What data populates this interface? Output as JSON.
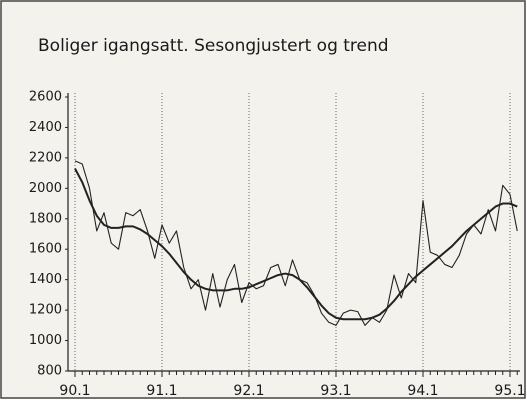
{
  "chart_data": {
    "type": "line",
    "title": "Boliger igangsatt. Sesongjustert og trend",
    "categories": [
      "90.1",
      null,
      null,
      null,
      null,
      null,
      null,
      null,
      null,
      null,
      null,
      null,
      "91.1",
      null,
      null,
      null,
      null,
      null,
      null,
      null,
      null,
      null,
      null,
      null,
      "92.1",
      null,
      null,
      null,
      null,
      null,
      null,
      null,
      null,
      null,
      null,
      null,
      "93.1",
      null,
      null,
      null,
      null,
      null,
      null,
      null,
      null,
      null,
      null,
      null,
      "94.1",
      null,
      null,
      null,
      null,
      null,
      null,
      null,
      null,
      null,
      null,
      null,
      "95.1",
      null
    ],
    "series": [
      {
        "color": "#222222",
        "values": [
          2180,
          2160,
          2000,
          1720,
          1840,
          1640,
          1600,
          1840,
          1820,
          1860,
          1720,
          1540,
          1760,
          1640,
          1720,
          1480,
          1340,
          1400,
          1200,
          1440,
          1220,
          1400,
          1500,
          1250,
          1380,
          1340,
          1360,
          1480,
          1500,
          1360,
          1530,
          1400,
          1380,
          1300,
          1180,
          1120,
          1100,
          1180,
          1200,
          1190,
          1100,
          1150,
          1120,
          1200,
          1430,
          1280,
          1440,
          1380,
          1920,
          1580,
          1560,
          1500,
          1480,
          1560,
          1700,
          1760,
          1700,
          1860,
          1720,
          2020,
          1960,
          1720
        ]
      },
      {
        "color": "#222222",
        "values": [
          2130,
          2040,
          1920,
          1820,
          1760,
          1740,
          1740,
          1750,
          1750,
          1730,
          1700,
          1660,
          1620,
          1570,
          1510,
          1450,
          1400,
          1360,
          1340,
          1330,
          1330,
          1330,
          1340,
          1340,
          1350,
          1370,
          1390,
          1410,
          1430,
          1440,
          1430,
          1400,
          1350,
          1290,
          1230,
          1180,
          1150,
          1140,
          1140,
          1140,
          1140,
          1150,
          1170,
          1210,
          1260,
          1320,
          1370,
          1420,
          1460,
          1500,
          1540,
          1580,
          1620,
          1670,
          1720,
          1760,
          1800,
          1840,
          1880,
          1900,
          1900,
          1880
        ]
      }
    ],
    "ylim": [
      800,
      2600
    ],
    "yticks": [
      800,
      1000,
      1200,
      1400,
      1600,
      1800,
      2000,
      2200,
      2400,
      2600
    ],
    "grid": true
  }
}
